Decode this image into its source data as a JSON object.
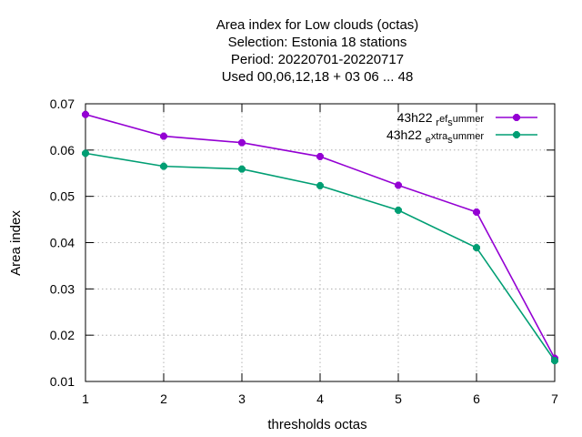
{
  "chart_data": {
    "type": "line",
    "title_lines": [
      "Area index  for Low clouds (octas)",
      "Selection: Estonia      18 stations",
      "Period: 20220701-20220717",
      "Used  00,06,12,18  + 03 06 ... 48"
    ],
    "xlabel": "thresholds octas",
    "ylabel": "Area index",
    "x": [
      1,
      2,
      3,
      4,
      5,
      6,
      7
    ],
    "xlim": [
      1,
      7
    ],
    "ylim": [
      0.01,
      0.07
    ],
    "x_ticks": [
      "1",
      "2",
      "3",
      "4",
      "5",
      "6",
      "7"
    ],
    "y_ticks": [
      "0.01",
      "0.02",
      "0.03",
      "0.04",
      "0.05",
      "0.06",
      "0.07"
    ],
    "grid": true,
    "legend_position": "top-right",
    "series": [
      {
        "name": "43h22 ref summer",
        "legend_parts": [
          "43h22 ",
          "r",
          "ef",
          "s",
          "ummer"
        ],
        "color": "#9400d3",
        "values": [
          0.0677,
          0.063,
          0.0616,
          0.0586,
          0.0524,
          0.0466,
          0.015
        ]
      },
      {
        "name": "43h22 extra summer",
        "legend_parts": [
          "43h22 ",
          "e",
          "xtra",
          "s",
          "ummer"
        ],
        "color": "#009e73",
        "values": [
          0.0593,
          0.0565,
          0.0559,
          0.0523,
          0.047,
          0.0389,
          0.0145
        ]
      }
    ]
  }
}
